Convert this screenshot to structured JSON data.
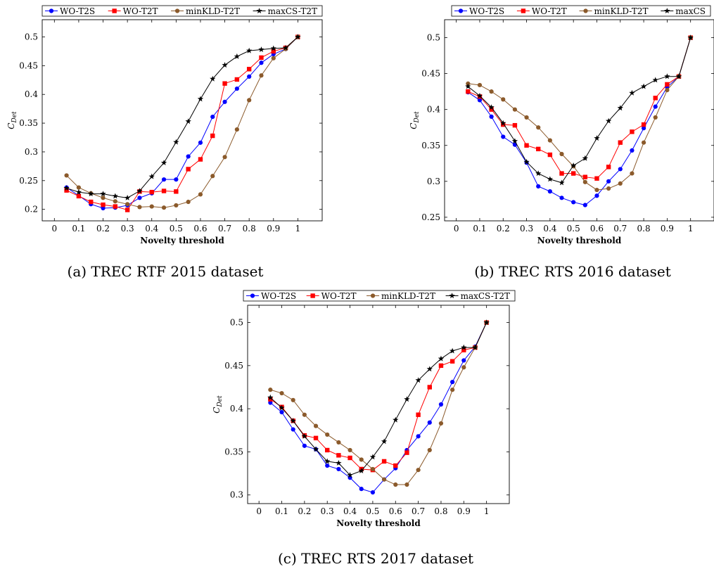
{
  "figure": {
    "captions": [
      "(a) TREC RTF 2015 dataset",
      "(b) TREC RTS 2016 dataset",
      "(c) TREC RTS 2017 dataset"
    ]
  },
  "styles": {
    "WO-T2S": {
      "color": "#0000ff",
      "marker": "circle"
    },
    "WO-T2T": {
      "color": "#ff0000",
      "marker": "square"
    },
    "minKLD-T2T": {
      "color": "#8b5a2b",
      "marker": "circle"
    },
    "maxCS": {
      "color": "#000000",
      "marker": "star"
    }
  },
  "chart_data": [
    {
      "type": "line",
      "caption": "(a) TREC RTF 2015 dataset",
      "xlabel": "Novelty threshold",
      "ylabel": "C_Det",
      "xlim": [
        -0.05,
        1.1
      ],
      "ylim": [
        0.18,
        0.53
      ],
      "xticks": [
        0,
        0.1,
        0.2,
        0.3,
        0.4,
        0.5,
        0.6,
        0.7,
        0.8,
        0.9,
        1
      ],
      "yticks": [
        0.2,
        0.25,
        0.3,
        0.35,
        0.4,
        0.45,
        0.5
      ],
      "x": [
        0.05,
        0.1,
        0.15,
        0.2,
        0.25,
        0.3,
        0.35,
        0.4,
        0.45,
        0.5,
        0.55,
        0.6,
        0.65,
        0.7,
        0.75,
        0.8,
        0.85,
        0.9,
        0.95,
        1.0
      ],
      "legend_position": "top",
      "series": [
        {
          "name": "WO-T2S",
          "style": "WO-T2S",
          "values": [
            0.238,
            0.224,
            0.209,
            0.202,
            0.203,
            0.207,
            0.22,
            0.228,
            0.252,
            0.252,
            0.292,
            0.316,
            0.361,
            0.387,
            0.41,
            0.431,
            0.455,
            0.47,
            0.479,
            0.5
          ]
        },
        {
          "name": "WO-T2T",
          "style": "WO-T2T",
          "values": [
            0.233,
            0.223,
            0.213,
            0.208,
            0.205,
            0.199,
            0.231,
            0.23,
            0.232,
            0.231,
            0.27,
            0.287,
            0.328,
            0.419,
            0.426,
            0.444,
            0.464,
            0.475,
            0.481,
            0.5
          ]
        },
        {
          "name": "minKLD-T2T",
          "style": "minKLD-T2T",
          "values": [
            0.259,
            0.238,
            0.228,
            0.22,
            0.214,
            0.209,
            0.204,
            0.205,
            0.203,
            0.207,
            0.213,
            0.226,
            0.258,
            0.291,
            0.339,
            0.39,
            0.433,
            0.463,
            0.479,
            0.5
          ]
        },
        {
          "name": "maxCS-T2T",
          "style": "maxCS",
          "values": [
            0.237,
            0.23,
            0.227,
            0.227,
            0.223,
            0.22,
            0.232,
            0.257,
            0.281,
            0.317,
            0.353,
            0.392,
            0.427,
            0.451,
            0.466,
            0.476,
            0.478,
            0.48,
            0.481,
            0.5
          ]
        }
      ]
    },
    {
      "type": "line",
      "caption": "(b) TREC RTS 2016 dataset",
      "xlabel": "Novelty threshold",
      "ylabel": "C_Det",
      "xlim": [
        -0.05,
        1.1
      ],
      "ylim": [
        0.245,
        0.525
      ],
      "xticks": [
        0,
        0.1,
        0.2,
        0.3,
        0.4,
        0.5,
        0.6,
        0.7,
        0.8,
        0.9,
        1
      ],
      "yticks": [
        0.25,
        0.3,
        0.35,
        0.4,
        0.45,
        0.5
      ],
      "x": [
        0.05,
        0.1,
        0.15,
        0.2,
        0.25,
        0.3,
        0.35,
        0.4,
        0.45,
        0.5,
        0.55,
        0.6,
        0.65,
        0.7,
        0.75,
        0.8,
        0.85,
        0.9,
        0.95,
        1.0
      ],
      "legend_position": "top",
      "series": [
        {
          "name": "WO-T2S",
          "style": "WO-T2S",
          "values": [
            0.424,
            0.413,
            0.39,
            0.362,
            0.351,
            0.326,
            0.293,
            0.286,
            0.277,
            0.271,
            0.267,
            0.28,
            0.3,
            0.317,
            0.343,
            0.374,
            0.404,
            0.431,
            0.446,
            0.5
          ]
        },
        {
          "name": "WO-T2T",
          "style": "WO-T2T",
          "values": [
            0.425,
            0.418,
            0.4,
            0.379,
            0.378,
            0.35,
            0.345,
            0.337,
            0.311,
            0.311,
            0.306,
            0.304,
            0.32,
            0.354,
            0.369,
            0.379,
            0.416,
            0.435,
            0.446,
            0.5
          ]
        },
        {
          "name": "minKLD-T2T",
          "style": "minKLD-T2T",
          "values": [
            0.436,
            0.434,
            0.425,
            0.414,
            0.4,
            0.389,
            0.375,
            0.357,
            0.338,
            0.321,
            0.299,
            0.288,
            0.29,
            0.297,
            0.311,
            0.354,
            0.389,
            0.427,
            0.446,
            0.5
          ]
        },
        {
          "name": "maxCS",
          "style": "maxCS",
          "values": [
            0.432,
            0.419,
            0.403,
            0.381,
            0.356,
            0.327,
            0.311,
            0.303,
            0.298,
            0.322,
            0.332,
            0.36,
            0.384,
            0.402,
            0.423,
            0.432,
            0.441,
            0.446,
            0.446,
            0.5
          ]
        }
      ]
    },
    {
      "type": "line",
      "caption": "(c) TREC RTS 2017 dataset",
      "xlabel": "Novelty threshold",
      "ylabel": "C_Det",
      "xlim": [
        -0.05,
        1.1
      ],
      "ylim": [
        0.29,
        0.52
      ],
      "xticks": [
        0,
        0.1,
        0.2,
        0.3,
        0.4,
        0.5,
        0.6,
        0.7,
        0.8,
        0.9,
        1
      ],
      "yticks": [
        0.3,
        0.35,
        0.4,
        0.45,
        0.5
      ],
      "x": [
        0.05,
        0.1,
        0.15,
        0.2,
        0.25,
        0.3,
        0.35,
        0.4,
        0.45,
        0.5,
        0.55,
        0.6,
        0.65,
        0.7,
        0.75,
        0.8,
        0.85,
        0.9,
        0.95,
        1.0
      ],
      "legend_position": "top",
      "series": [
        {
          "name": "WO-T2S",
          "style": "WO-T2S",
          "values": [
            0.407,
            0.396,
            0.376,
            0.357,
            0.353,
            0.334,
            0.33,
            0.32,
            0.307,
            0.303,
            0.318,
            0.331,
            0.352,
            0.368,
            0.384,
            0.405,
            0.431,
            0.456,
            0.472,
            0.5
          ]
        },
        {
          "name": "WO-T2T",
          "style": "WO-T2T",
          "values": [
            0.411,
            0.402,
            0.386,
            0.369,
            0.366,
            0.352,
            0.346,
            0.343,
            0.33,
            0.329,
            0.339,
            0.334,
            0.349,
            0.393,
            0.425,
            0.45,
            0.455,
            0.468,
            0.471,
            0.5
          ]
        },
        {
          "name": "minKLD-T2T",
          "style": "minKLD-T2T",
          "values": [
            0.422,
            0.418,
            0.41,
            0.393,
            0.38,
            0.37,
            0.361,
            0.352,
            0.341,
            0.33,
            0.318,
            0.312,
            0.312,
            0.329,
            0.352,
            0.383,
            0.422,
            0.448,
            0.471,
            0.5
          ]
        },
        {
          "name": "maxCS-T2T",
          "style": "maxCS",
          "values": [
            0.413,
            0.401,
            0.386,
            0.368,
            0.353,
            0.339,
            0.337,
            0.323,
            0.328,
            0.344,
            0.362,
            0.387,
            0.411,
            0.433,
            0.446,
            0.458,
            0.467,
            0.471,
            0.471,
            0.5
          ]
        }
      ]
    }
  ]
}
